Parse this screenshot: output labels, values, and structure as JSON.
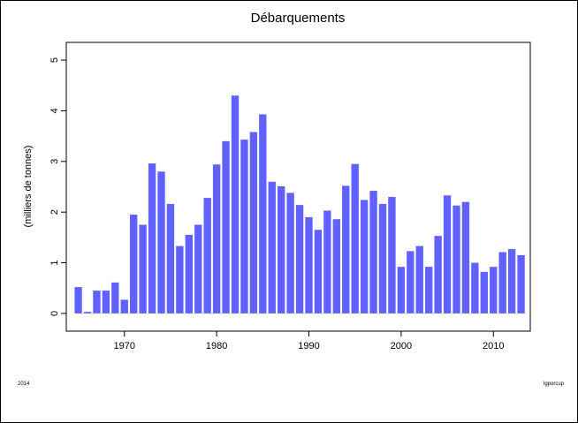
{
  "chart_data": {
    "type": "bar",
    "title": "Débarquements",
    "y_label": "(milliers de tonnes)",
    "footer_left": "2014",
    "footer_right": "lgporcup",
    "x": [
      1965,
      1966,
      1967,
      1968,
      1969,
      1970,
      1971,
      1972,
      1973,
      1974,
      1975,
      1976,
      1977,
      1978,
      1979,
      1980,
      1981,
      1982,
      1983,
      1984,
      1985,
      1986,
      1987,
      1988,
      1989,
      1990,
      1991,
      1992,
      1993,
      1994,
      1995,
      1996,
      1997,
      1998,
      1999,
      2000,
      2001,
      2002,
      2003,
      2004,
      2005,
      2006,
      2007,
      2008,
      2009,
      2010,
      2011,
      2012,
      2013
    ],
    "values": [
      0.52,
      0.03,
      0.45,
      0.45,
      0.61,
      0.27,
      1.95,
      1.75,
      2.96,
      2.8,
      2.16,
      1.33,
      1.55,
      1.75,
      2.28,
      2.94,
      3.4,
      4.3,
      3.43,
      3.58,
      3.93,
      2.6,
      2.51,
      2.38,
      2.14,
      1.9,
      1.65,
      2.03,
      1.86,
      2.52,
      2.95,
      2.24,
      2.42,
      2.16,
      2.3,
      0.92,
      1.23,
      1.33,
      0.92,
      1.53,
      2.33,
      2.13,
      2.2,
      1.0,
      0.82,
      0.92,
      1.21,
      1.27,
      1.15
    ],
    "color": "#6161ff",
    "xlim": [
      1963.7,
      2014.0
    ],
    "xticks": [
      1970,
      1980,
      1990,
      2000,
      2010
    ],
    "ylim": [
      -0.35,
      5.35
    ],
    "yticks": [
      0,
      1,
      2,
      3,
      4,
      5
    ],
    "grid": false
  }
}
